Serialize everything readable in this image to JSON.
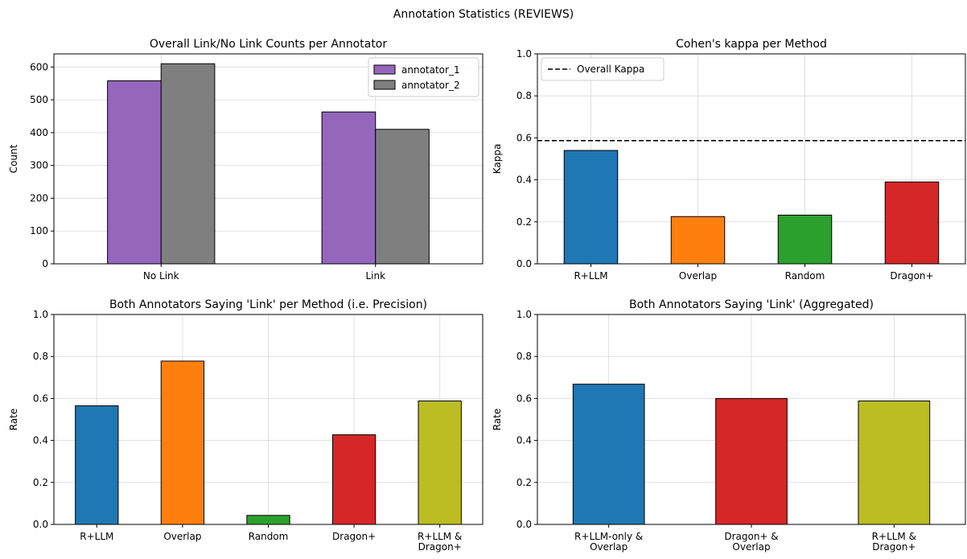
{
  "suptitle": "Annotation Statistics (REVIEWS)",
  "chart_data": [
    {
      "type": "bar",
      "title": "Overall Link/No Link Counts per Annotator",
      "xlabel": "",
      "ylabel": "Count",
      "categories": [
        "No Link",
        "Link"
      ],
      "series": [
        {
          "name": "annotator_1",
          "values": [
            558,
            463
          ],
          "color": "#9467bd"
        },
        {
          "name": "annotator_2",
          "values": [
            610,
            410
          ],
          "color": "#7f7f7f"
        }
      ],
      "ylim": [
        0,
        640
      ],
      "yticks": [
        0,
        100,
        200,
        300,
        400,
        500,
        600
      ],
      "grid": true,
      "legend": "top-right"
    },
    {
      "type": "bar",
      "title": "Cohen's kappa per Method",
      "xlabel": "",
      "ylabel": "Kappa",
      "categories": [
        "R+LLM",
        "Overlap",
        "Random",
        "Dragon+"
      ],
      "values": [
        0.54,
        0.225,
        0.232,
        0.39
      ],
      "colors": [
        "#1f77b4",
        "#ff7f0e",
        "#2ca02c",
        "#d62728"
      ],
      "reference_line": {
        "name": "Overall Kappa",
        "value": 0.587,
        "style": "dashed"
      },
      "ylim": [
        0,
        1.0
      ],
      "yticks": [
        0.0,
        0.2,
        0.4,
        0.6,
        0.8,
        1.0
      ],
      "grid": true,
      "legend": "top-left"
    },
    {
      "type": "bar",
      "title": "Both Annotators Saying 'Link' per Method (i.e. Precision)",
      "xlabel": "",
      "ylabel": "Rate",
      "categories": [
        [
          "R+LLM"
        ],
        [
          "Overlap"
        ],
        [
          "Random"
        ],
        [
          "Dragon+"
        ],
        [
          "R+LLM &",
          "Dragon+"
        ]
      ],
      "values": [
        0.565,
        0.778,
        0.043,
        0.427,
        0.588
      ],
      "colors": [
        "#1f77b4",
        "#ff7f0e",
        "#2ca02c",
        "#d62728",
        "#bcbd22"
      ],
      "ylim": [
        0,
        1.0
      ],
      "yticks": [
        0.0,
        0.2,
        0.4,
        0.6,
        0.8,
        1.0
      ],
      "grid": true
    },
    {
      "type": "bar",
      "title": "Both Annotators Saying 'Link' (Aggregated)",
      "xlabel": "",
      "ylabel": "Rate",
      "categories": [
        [
          "R+LLM-only &",
          "Overlap"
        ],
        [
          "Dragon+ &",
          "Overlap"
        ],
        [
          "R+LLM &",
          "Dragon+"
        ]
      ],
      "values": [
        0.668,
        0.6,
        0.588
      ],
      "colors": [
        "#1f77b4",
        "#d62728",
        "#bcbd22"
      ],
      "ylim": [
        0,
        1.0
      ],
      "yticks": [
        0.0,
        0.2,
        0.4,
        0.6,
        0.8,
        1.0
      ],
      "grid": true
    }
  ]
}
